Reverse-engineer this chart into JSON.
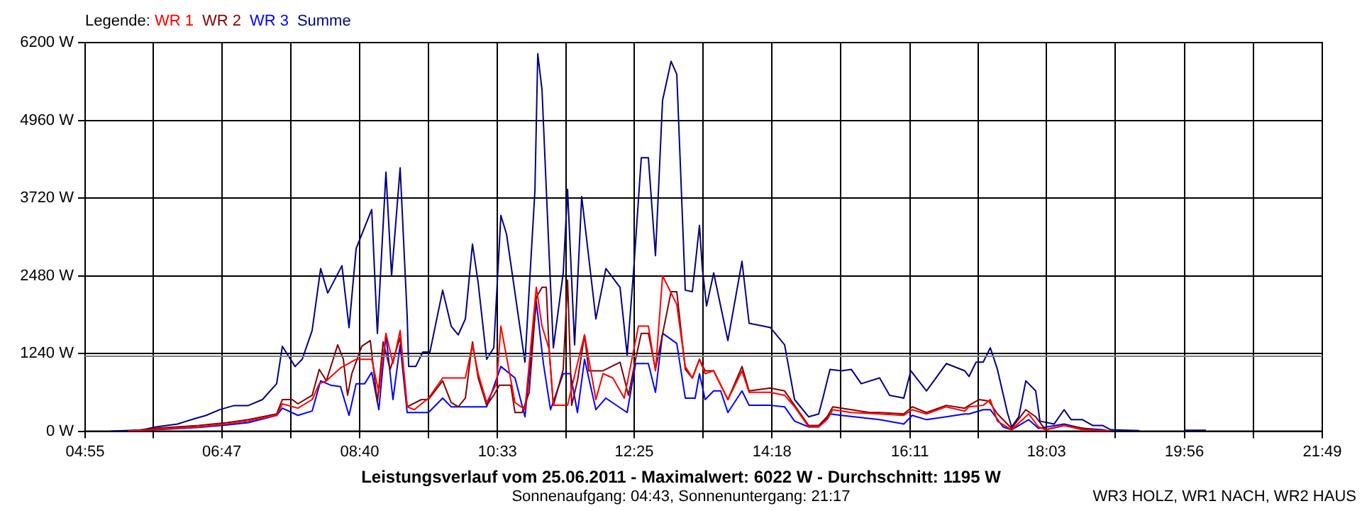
{
  "chart_data": {
    "type": "line",
    "title": "Leistungsverlauf vom 25.06.2011 - Maximalwert: 6022 W - Durchschnitt: 1195 W",
    "subtitle": "Sonnenaufgang: 04:43, Sonnenuntergang: 21:17",
    "legend_title": "Legende:",
    "annotations": [
      "WR3 HOLZ, WR1 NACH, WR2 HAUS"
    ],
    "legend": "top left",
    "grid": true,
    "xlim": [
      4.9167,
      21.8167
    ],
    "xticks": [
      {
        "value": 4.9167,
        "label": "04:55"
      },
      {
        "value": 5.85,
        "label": null
      },
      {
        "value": 6.7833,
        "label": "06:47"
      },
      {
        "value": 7.725,
        "label": null
      },
      {
        "value": 8.6667,
        "label": "08:40"
      },
      {
        "value": 9.6083,
        "label": null
      },
      {
        "value": 10.55,
        "label": "10:33"
      },
      {
        "value": 11.4833,
        "label": null
      },
      {
        "value": 12.4167,
        "label": "12:25"
      },
      {
        "value": 13.3583,
        "label": null
      },
      {
        "value": 14.3,
        "label": "14:18"
      },
      {
        "value": 15.2417,
        "label": null
      },
      {
        "value": 16.1833,
        "label": "16:11"
      },
      {
        "value": 17.1167,
        "label": null
      },
      {
        "value": 18.05,
        "label": "18:03"
      },
      {
        "value": 18.9917,
        "label": null
      },
      {
        "value": 19.9333,
        "label": "19:56"
      },
      {
        "value": 20.875,
        "label": null
      },
      {
        "value": 21.8167,
        "label": "21:49"
      }
    ],
    "ylim": [
      0,
      6200
    ],
    "yticks": [
      {
        "value": 0,
        "label": "0 W"
      },
      {
        "value": 1240,
        "label": "1240 W"
      },
      {
        "value": 2480,
        "label": "2480 W"
      },
      {
        "value": 3720,
        "label": "3720 W"
      },
      {
        "value": 4960,
        "label": "4960 W"
      },
      {
        "value": 6200,
        "label": "6200 W"
      }
    ],
    "ref_lines": [
      {
        "axis": "y",
        "value": 1195,
        "color": "#808080"
      }
    ],
    "series": [
      {
        "name": "WR 1",
        "color": "#ff0000",
        "x": [
          5.498,
          5.886,
          6.467,
          6.855,
          7.146,
          7.339,
          7.533,
          7.611,
          7.824,
          8.018,
          8.115,
          8.212,
          8.405,
          8.619,
          8.832,
          8.929,
          9.026,
          9.122,
          9.22,
          9.316,
          9.413,
          9.607,
          9.801,
          10.111,
          10.208,
          10.286,
          10.402,
          10.537,
          10.596,
          10.789,
          10.925,
          11.08,
          11.158,
          11.255,
          11.313,
          11.507,
          11.642,
          11.739,
          11.894,
          11.991,
          12.126,
          12.281,
          12.475,
          12.611,
          12.708,
          12.805,
          12.999,
          13.115,
          13.212,
          13.309,
          13.386,
          13.503,
          13.697,
          13.89,
          13.987,
          14.278,
          14.472,
          14.608,
          14.801,
          14.937,
          15.053,
          15.13,
          15.383,
          15.77,
          16.1,
          16.215,
          16.41,
          16.681,
          16.933,
          16.991,
          17.185,
          17.282,
          17.379,
          17.573,
          17.805,
          17.94,
          18.037,
          18.29,
          18.542,
          18.929
        ],
        "values": [
          0,
          30,
          70,
          115,
          161,
          207,
          253,
          437,
          368,
          505,
          758,
          804,
          1010,
          1148,
          1148,
          620,
          1562,
          1079,
          1607,
          390,
          344,
          528,
          850,
          850,
          1378,
          918,
          459,
          758,
          1676,
          459,
          344,
          2296,
          1676,
          1309,
          413,
          413,
          1079,
          1538,
          505,
          918,
          850,
          528,
          1676,
          1676,
          964,
          2480,
          2021,
          1033,
          850,
          1148,
          918,
          964,
          505,
          964,
          620,
          620,
          574,
          390,
          69,
          69,
          184,
          344,
          298,
          276,
          253,
          344,
          276,
          390,
          321,
          390,
          413,
          505,
          161,
          23,
          276,
          69,
          23,
          92,
          23,
          0
        ]
      },
      {
        "name": "WR 2",
        "color": "#800000",
        "x": [
          5.498,
          5.886,
          6.467,
          6.855,
          7.146,
          7.339,
          7.533,
          7.611,
          7.746,
          7.824,
          8.018,
          8.115,
          8.212,
          8.367,
          8.444,
          8.502,
          8.56,
          8.696,
          8.812,
          8.909,
          8.987,
          9.084,
          9.22,
          9.316,
          9.51,
          9.607,
          9.801,
          9.917,
          10.014,
          10.111,
          10.208,
          10.286,
          10.402,
          10.499,
          10.576,
          10.731,
          10.789,
          10.886,
          10.983,
          11.08,
          11.158,
          11.216,
          11.255,
          11.313,
          11.448,
          11.507,
          11.564,
          11.642,
          11.739,
          11.796,
          11.991,
          12.224,
          12.339,
          12.436,
          12.514,
          12.611,
          12.708,
          12.921,
          12.999,
          13.115,
          13.212,
          13.309,
          13.386,
          13.503,
          13.697,
          13.89,
          13.987,
          14.278,
          14.472,
          14.608,
          14.801,
          14.937,
          15.053,
          15.13,
          15.383,
          15.634,
          15.77,
          16.1,
          16.215,
          16.41,
          16.681,
          16.933,
          16.991,
          17.127,
          17.262,
          17.379,
          17.573,
          17.767,
          17.902,
          18.037,
          18.29,
          18.425,
          18.678,
          18.929
        ],
        "values": [
          0,
          46,
          92,
          138,
          184,
          230,
          276,
          505,
          505,
          437,
          574,
          987,
          804,
          1378,
          1148,
          574,
          918,
          1355,
          1446,
          459,
          1424,
          987,
          1492,
          390,
          505,
          505,
          804,
          459,
          390,
          528,
          1424,
          850,
          413,
          574,
          735,
          735,
          298,
          298,
          620,
          2135,
          2296,
          2296,
          1309,
          413,
          987,
          2411,
          413,
          804,
          1538,
          964,
          964,
          1102,
          574,
          1148,
          1562,
          1562,
          987,
          2227,
          2227,
          987,
          850,
          1148,
          964,
          964,
          505,
          1033,
          643,
          689,
          643,
          413,
          92,
          92,
          230,
          390,
          344,
          298,
          298,
          276,
          390,
          298,
          413,
          367,
          413,
          505,
          482,
          276,
          46,
          344,
          230,
          23,
          92,
          69,
          23,
          0
        ]
      },
      {
        "name": "WR 3",
        "color": "#0000ff",
        "x": [
          5.498,
          5.886,
          6.467,
          6.855,
          7.146,
          7.533,
          7.611,
          7.824,
          8.018,
          8.134,
          8.27,
          8.405,
          8.522,
          8.619,
          8.735,
          8.832,
          8.929,
          9.026,
          9.122,
          9.22,
          9.316,
          9.607,
          9.801,
          9.917,
          10.402,
          10.596,
          10.789,
          10.925,
          11.08,
          11.177,
          11.274,
          11.448,
          11.545,
          11.642,
          11.739,
          11.894,
          12.03,
          12.321,
          12.436,
          12.611,
          12.708,
          12.805,
          12.999,
          13.115,
          13.25,
          13.309,
          13.386,
          13.503,
          13.599,
          13.697,
          13.89,
          13.987,
          14.278,
          14.472,
          14.608,
          14.801,
          14.937,
          15.092,
          15.247,
          15.77,
          16.1,
          16.215,
          16.41,
          16.681,
          16.933,
          16.991,
          17.185,
          17.282,
          17.456,
          17.573,
          17.805,
          17.94,
          18.29,
          18.542,
          18.813,
          18.929
        ],
        "values": [
          0,
          25,
          60,
          100,
          138,
          253,
          368,
          253,
          322,
          804,
          735,
          712,
          253,
          758,
          758,
          941,
          344,
          1538,
          505,
          1378,
          298,
          298,
          528,
          390,
          390,
          1033,
          850,
          230,
          2067,
          1079,
          344,
          918,
          918,
          298,
          1148,
          344,
          528,
          298,
          1079,
          1079,
          620,
          1562,
          1401,
          528,
          528,
          918,
          505,
          643,
          643,
          298,
          643,
          413,
          413,
          390,
          161,
          69,
          69,
          276,
          253,
          184,
          115,
          253,
          184,
          230,
          276,
          276,
          344,
          344,
          69,
          23,
          184,
          46,
          115,
          46,
          23,
          0
        ]
      },
      {
        "name": "Summe",
        "color": "#000080",
        "x": [
          5.266,
          5.692,
          5.886,
          6.177,
          6.409,
          6.564,
          6.758,
          6.952,
          7.146,
          7.339,
          7.533,
          7.611,
          7.785,
          7.882,
          8.018,
          8.134,
          8.231,
          8.425,
          8.522,
          8.619,
          8.832,
          8.909,
          9.026,
          9.103,
          9.22,
          9.316,
          9.336,
          9.433,
          9.53,
          9.627,
          9.801,
          9.917,
          10.014,
          10.111,
          10.208,
          10.286,
          10.402,
          10.499,
          10.596,
          10.673,
          10.925,
          11.061,
          11.1,
          11.158,
          11.255,
          11.313,
          11.448,
          11.507,
          11.603,
          11.7,
          11.894,
          12.03,
          12.224,
          12.321,
          12.417,
          12.514,
          12.611,
          12.708,
          12.805,
          12.921,
          12.999,
          13.115,
          13.212,
          13.309,
          13.348,
          13.406,
          13.503,
          13.697,
          13.89,
          13.987,
          14.278,
          14.472,
          14.608,
          14.801,
          14.937,
          14.995,
          15.092,
          15.247,
          15.383,
          15.518,
          15.77,
          15.906,
          16.1,
          16.196,
          16.41,
          16.681,
          16.933,
          16.991,
          17.088,
          17.185,
          17.282,
          17.379,
          17.515,
          17.573,
          17.67,
          17.767,
          17.902,
          17.96,
          18.154,
          18.29,
          18.386,
          18.542,
          18.678,
          18.813,
          18.929,
          19.317,
          19.647,
          19.937,
          20.228
        ],
        "values": [
          0,
          20,
          70,
          115,
          200,
          250,
          345,
          410,
          410,
          505,
          758,
          1355,
          1033,
          1148,
          1607,
          2595,
          2205,
          2641,
          1653,
          2916,
          3537,
          1562,
          4133,
          2480,
          4202,
          1837,
          1033,
          1033,
          1263,
          1263,
          2250,
          1676,
          1538,
          1791,
          2985,
          2365,
          1148,
          1332,
          3444,
          3146,
          1102,
          3835,
          6022,
          5442,
          2824,
          1332,
          2526,
          3858,
          1378,
          3743,
          1791,
          2595,
          2296,
          1217,
          2687,
          4363,
          4363,
          2801,
          5281,
          5901,
          5695,
          2250,
          2227,
          3284,
          2595,
          1998,
          2526,
          1446,
          2710,
          1722,
          1653,
          1378,
          505,
          230,
          276,
          528,
          987,
          964,
          987,
          758,
          850,
          574,
          528,
          964,
          643,
          1079,
          964,
          873,
          1102,
          1102,
          1332,
          987,
          298,
          69,
          230,
          804,
          643,
          161,
          115,
          344,
          184,
          184,
          92,
          92,
          23,
          10,
          null,
          15,
          15
        ]
      }
    ]
  }
}
